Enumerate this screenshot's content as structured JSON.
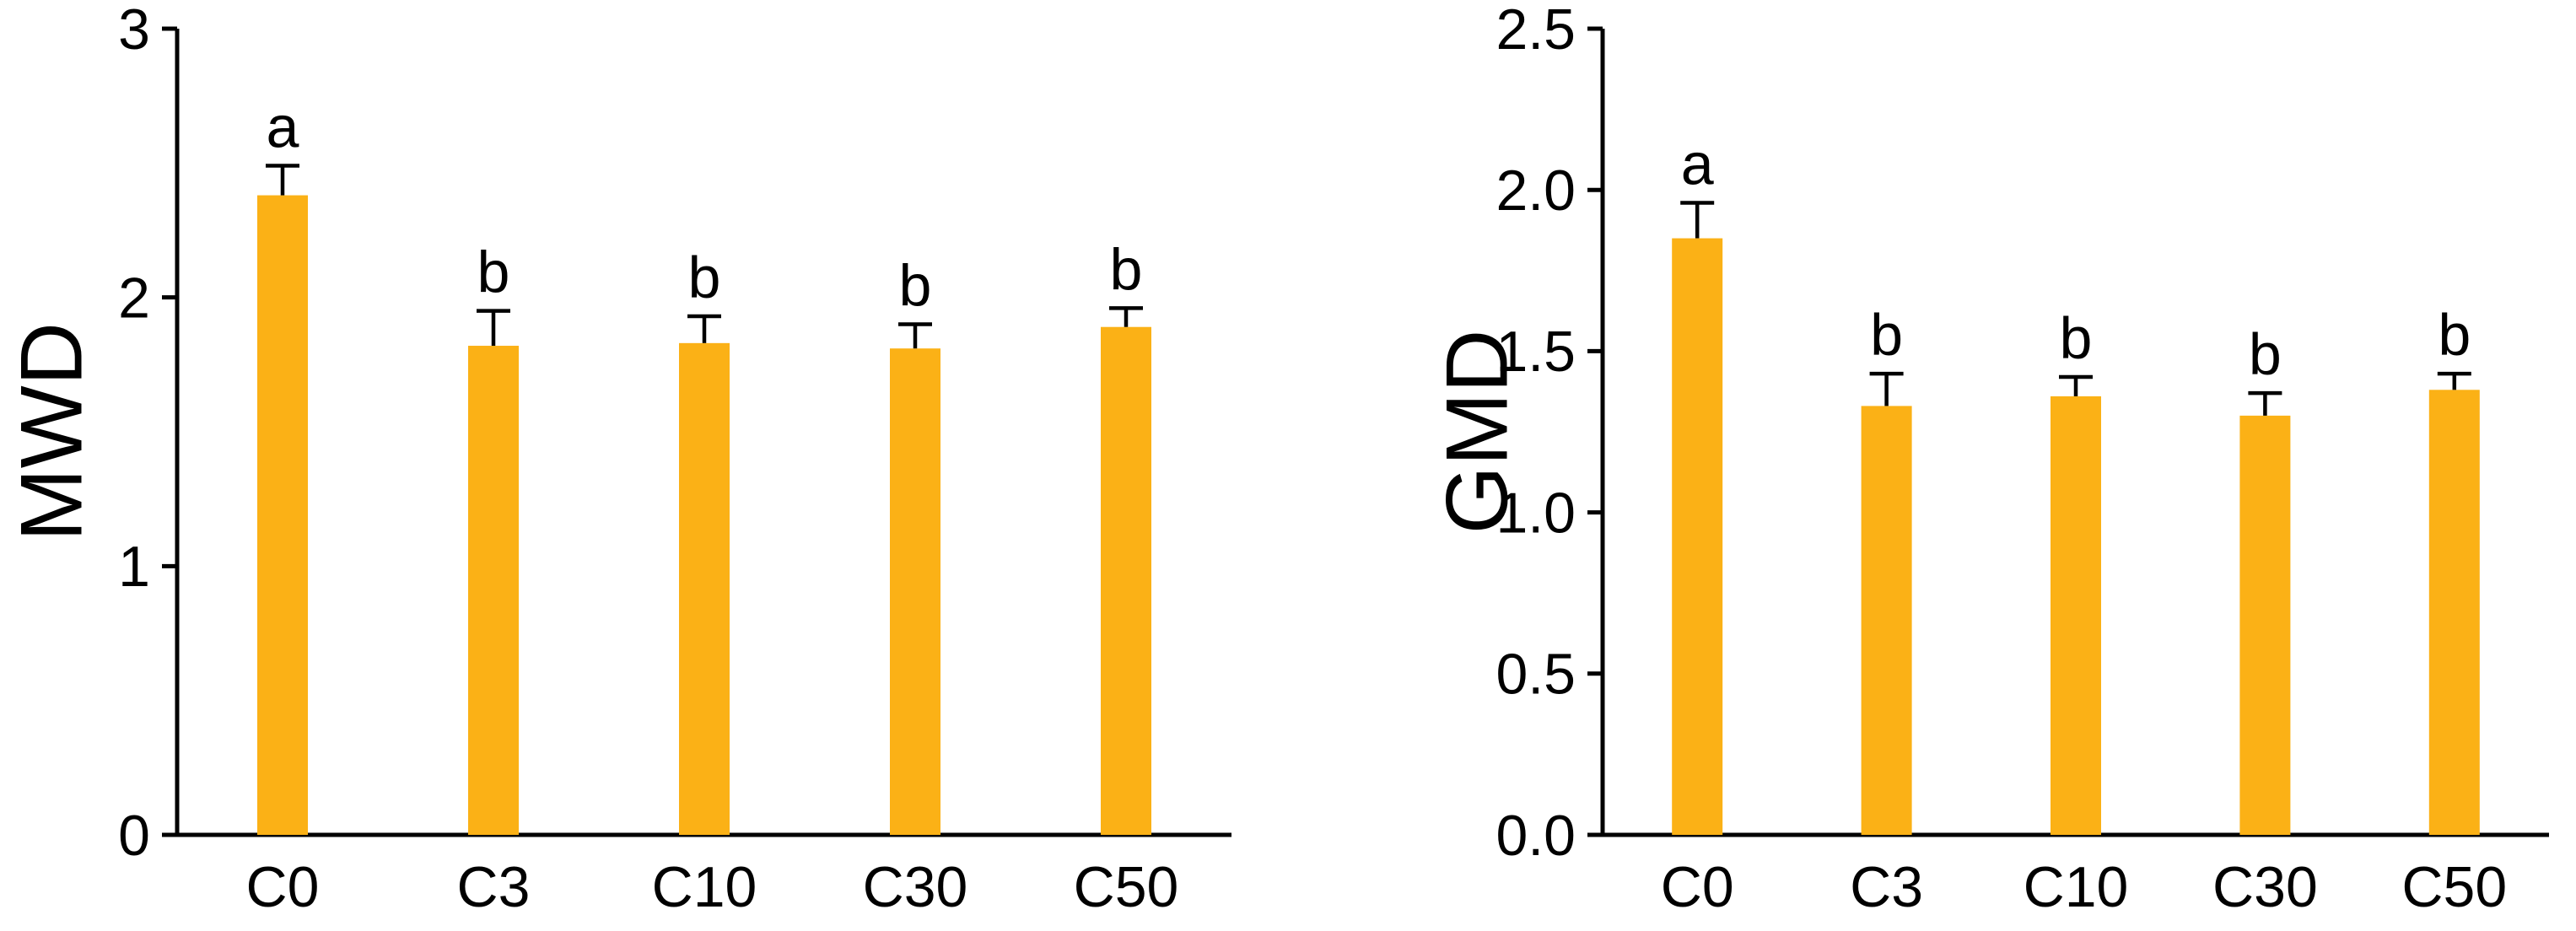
{
  "figure": {
    "background": "#ffffff",
    "bar_color": "#FBB116",
    "axis_color": "#000000",
    "text_color": "#000000",
    "error_bar_color": "#000000"
  },
  "chart_data": [
    {
      "type": "bar",
      "title": "",
      "ylabel": "MWD",
      "xlabel": "",
      "categories": [
        "C0",
        "C3",
        "C10",
        "C30",
        "C50"
      ],
      "values": [
        2.38,
        1.82,
        1.83,
        1.81,
        1.89
      ],
      "errors": [
        0.11,
        0.13,
        0.1,
        0.09,
        0.07
      ],
      "sig_letters": [
        "a",
        "b",
        "b",
        "b",
        "b"
      ],
      "ylim": [
        0,
        3
      ],
      "yticks": [
        0,
        1,
        2,
        3
      ],
      "ytick_labels": [
        "0",
        "1",
        "2",
        "3"
      ],
      "grid": false,
      "legend": null
    },
    {
      "type": "bar",
      "title": "",
      "ylabel": "GMD",
      "xlabel": "",
      "categories": [
        "C0",
        "C3",
        "C10",
        "C30",
        "C50"
      ],
      "values": [
        1.85,
        1.33,
        1.36,
        1.3,
        1.38
      ],
      "errors": [
        0.11,
        0.1,
        0.06,
        0.07,
        0.05
      ],
      "sig_letters": [
        "a",
        "b",
        "b",
        "b",
        "b"
      ],
      "ylim": [
        0,
        2.5
      ],
      "yticks": [
        0,
        0.5,
        1.0,
        1.5,
        2.0,
        2.5
      ],
      "ytick_labels": [
        "0.0",
        "0.5",
        "1.0",
        "1.5",
        "2.0",
        "2.5"
      ],
      "grid": false,
      "legend": null
    }
  ]
}
